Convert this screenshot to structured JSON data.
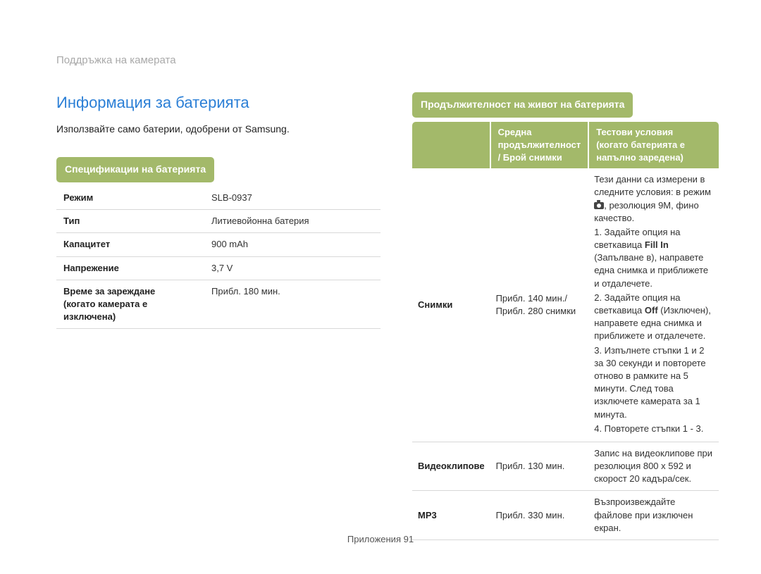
{
  "breadcrumb": "Поддръжка на камерата",
  "section_title": "Информация за батерията",
  "intro": "Използвайте само батерии, одобрени от Samsung.",
  "spec_header": "Спецификации на батерията",
  "spec_rows": [
    {
      "label": "Режим",
      "value": "SLB-0937"
    },
    {
      "label": "Тип",
      "value": "Литиевойонна батерия"
    },
    {
      "label": "Капацитет",
      "value": "900 mAh"
    },
    {
      "label": "Напрежение",
      "value": "3,7 V"
    },
    {
      "label": "Време за зареждане\n(когато камерата е изключена)",
      "value": "Прибл. 180 мин."
    }
  ],
  "life_header": "Продължителност на живот на батерията",
  "life_table": {
    "col1_blank": "",
    "col2_header": "Средна продължителност / Брой снимки",
    "col3_header": "Тестови условия\n(когато батерията е напълно заредена)",
    "rows": {
      "photos": {
        "label": "Снимки",
        "duration": "Прибл. 140 мин./\nПрибл. 280 снимки",
        "cond_intro1": "Тези данни са измерени в следните условия: в режим ",
        "cond_intro2": ", резолюция 9M, фино качество.",
        "cond_1a": "1. Задайте опция на светкавица ",
        "cond_1b_bold": "Fill In",
        "cond_1c": " (Запълване в), направете една снимка и приближете и отдалечете.",
        "cond_2a": "2. Задайте опция на светкавица ",
        "cond_2b_bold": "Off",
        "cond_2c": " (Изключен), направете една снимка и приближете и отдалечете.",
        "cond_3": "3. Изпълнете стъпки 1 и 2 за 30 секунди и повторете отново в рамките на 5 минути. След това изключете камерата за 1 минута.",
        "cond_4": "4. Повторете стъпки 1 - 3."
      },
      "video": {
        "label": "Видеоклипове",
        "duration": "Прибл. 130 мин.",
        "conditions": "Запис на видеоклипове при резолюция 800 x 592 и скорост 20 кадъра/сек."
      },
      "mp3": {
        "label": "MP3",
        "duration": "Прибл. 330 мин.",
        "conditions": "Възпроизвеждайте файлове при изключен екран."
      }
    }
  },
  "footer_label": "Приложения",
  "footer_page": "91"
}
